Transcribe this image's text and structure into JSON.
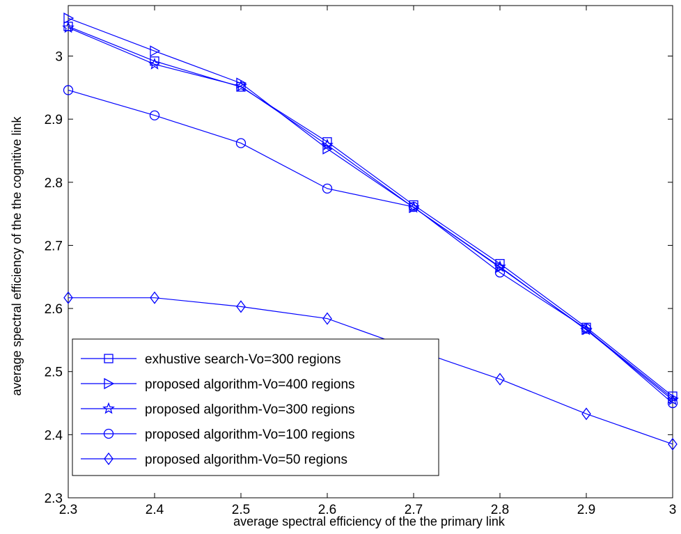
{
  "chart_data": {
    "type": "line",
    "title": "",
    "xlabel": "average spectral efficiency of the the primary link",
    "ylabel": "average spectral efficiency of the the cognitive link",
    "xlim": [
      2.3,
      3.0
    ],
    "ylim": [
      2.3,
      3.08
    ],
    "x_ticks": [
      "2.3",
      "2.4",
      "2.5",
      "2.6",
      "2.7",
      "2.8",
      "2.9",
      "3"
    ],
    "y_ticks": [
      "2.3",
      "2.4",
      "2.5",
      "2.6",
      "2.7",
      "2.8",
      "2.9",
      "3"
    ],
    "grid": false,
    "legend_position": "bottom-left",
    "line_color": "#0000ff",
    "series": [
      {
        "name": "exhustive search-Vo=300 regions",
        "marker": "square",
        "x": [
          2.3,
          2.4,
          2.5,
          2.6,
          2.7,
          2.8,
          2.9,
          3.0
        ],
        "y": [
          3.047,
          2.992,
          2.951,
          2.864,
          2.764,
          2.671,
          2.57,
          2.461
        ]
      },
      {
        "name": "proposed algorithm-Vo=400 regions",
        "marker": "triangle-right",
        "x": [
          2.3,
          2.4,
          2.5,
          2.6,
          2.7,
          2.8,
          2.9,
          3.0
        ],
        "y": [
          3.06,
          3.008,
          2.957,
          2.853,
          2.76,
          2.665,
          2.567,
          2.458
        ]
      },
      {
        "name": "proposed algorithm-Vo=300 regions",
        "marker": "star",
        "x": [
          2.3,
          2.4,
          2.5,
          2.6,
          2.7,
          2.8,
          2.9,
          3.0
        ],
        "y": [
          3.045,
          2.987,
          2.952,
          2.859,
          2.76,
          2.666,
          2.566,
          2.455
        ]
      },
      {
        "name": "proposed algorithm-Vo=100 regions",
        "marker": "circle",
        "x": [
          2.3,
          2.4,
          2.5,
          2.6,
          2.7,
          2.8,
          2.9,
          3.0
        ],
        "y": [
          2.946,
          2.906,
          2.862,
          2.79,
          2.761,
          2.657,
          2.568,
          2.45
        ]
      },
      {
        "name": "proposed algorithm-Vo=50 regions",
        "marker": "diamond",
        "x": [
          2.3,
          2.4,
          2.5,
          2.6,
          2.7,
          2.8,
          2.9,
          3.0
        ],
        "y": [
          2.617,
          2.617,
          2.603,
          2.584,
          2.535,
          2.488,
          2.433,
          2.385
        ]
      }
    ]
  }
}
